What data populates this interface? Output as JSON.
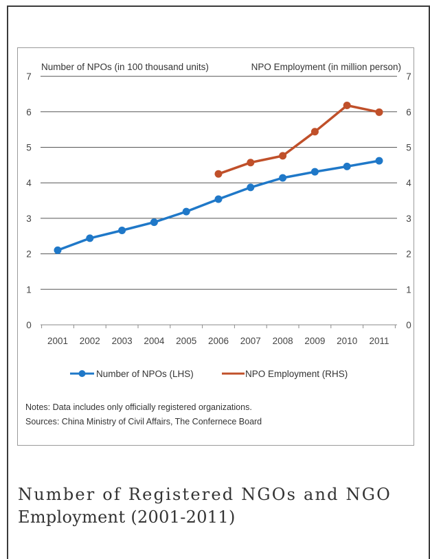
{
  "chart_data": {
    "type": "line",
    "left_axis_title": "Number of NPOs (in 100 thousand units)",
    "right_axis_title": "NPO Employment  (in million person)",
    "categories": [
      "2001",
      "2002",
      "2003",
      "2004",
      "2005",
      "2006",
      "2007",
      "2008",
      "2009",
      "2010",
      "2011"
    ],
    "y_ticks": [
      "0",
      "1",
      "2",
      "3",
      "4",
      "5",
      "6",
      "7"
    ],
    "ylim_left": [
      0,
      7
    ],
    "ylim_right": [
      0,
      7
    ],
    "grid": true,
    "series": [
      {
        "name": "Number of NPOs (LHS)",
        "axis": "left",
        "color": "#1f78c8",
        "values": [
          2.1,
          2.44,
          2.66,
          2.89,
          3.19,
          3.54,
          3.87,
          4.14,
          4.31,
          4.46,
          4.62
        ]
      },
      {
        "name": "NPO Employment  (RHS)",
        "axis": "right",
        "color": "#c0502a",
        "values": [
          null,
          null,
          null,
          null,
          null,
          4.25,
          4.57,
          4.76,
          5.44,
          6.18,
          5.99
        ]
      }
    ],
    "legend_position": "bottom",
    "notes": "Notes: Data includes only officially registered organizations.",
    "sources": "Sources: China Ministry of Civil Affairs, The Confernece Board"
  },
  "caption": {
    "line1": "Number of Registered NGOs and NGO",
    "line2": "Employment (2001-2011)"
  }
}
